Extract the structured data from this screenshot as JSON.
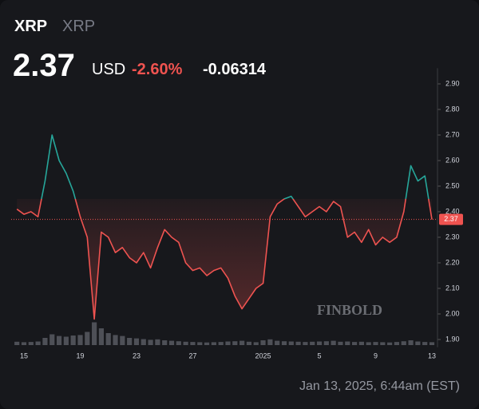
{
  "header": {
    "symbol": "XRP",
    "name": "XRP",
    "price": "2.37",
    "currency": "USD",
    "change_percent": "-2.60%",
    "change": "-0.06314"
  },
  "footer": {
    "timestamp": "Jan 13, 2025, 6:44am (EST)",
    "watermark": "FINBOLD"
  },
  "chart_data": {
    "type": "line",
    "categories": [
      null,
      "15",
      null,
      null,
      null,
      null,
      null,
      null,
      null,
      "19",
      null,
      null,
      null,
      null,
      null,
      null,
      null,
      "23",
      null,
      null,
      null,
      null,
      null,
      null,
      null,
      "27",
      null,
      null,
      null,
      null,
      null,
      null,
      null,
      null,
      null,
      "2025",
      null,
      null,
      null,
      null,
      null,
      null,
      null,
      "5",
      null,
      null,
      null,
      null,
      null,
      null,
      null,
      "9",
      null,
      null,
      null,
      null,
      null,
      null,
      null,
      "13"
    ],
    "values": [
      2.41,
      2.39,
      2.4,
      2.38,
      2.52,
      2.7,
      2.6,
      2.55,
      2.48,
      2.38,
      2.3,
      1.98,
      2.32,
      2.3,
      2.24,
      2.26,
      2.22,
      2.2,
      2.24,
      2.18,
      2.26,
      2.33,
      2.3,
      2.28,
      2.2,
      2.17,
      2.18,
      2.15,
      2.17,
      2.18,
      2.14,
      2.07,
      2.02,
      2.06,
      2.1,
      2.12,
      2.38,
      2.43,
      2.45,
      2.46,
      2.42,
      2.38,
      2.4,
      2.42,
      2.4,
      2.44,
      2.42,
      2.3,
      2.32,
      2.28,
      2.33,
      2.27,
      2.3,
      2.28,
      2.3,
      2.4,
      2.58,
      2.52,
      2.54,
      2.37
    ],
    "volumes": [
      14,
      12,
      13,
      15,
      30,
      45,
      38,
      35,
      40,
      42,
      55,
      95,
      70,
      50,
      42,
      38,
      30,
      28,
      25,
      22,
      24,
      20,
      18,
      16,
      14,
      13,
      12,
      11,
      12,
      13,
      15,
      16,
      18,
      14,
      12,
      20,
      24,
      18,
      16,
      15,
      14,
      13,
      14,
      15,
      16,
      18,
      14,
      15,
      13,
      14,
      12,
      13,
      12,
      11,
      13,
      16,
      20,
      15,
      13,
      12
    ],
    "volume_lim": [
      0,
      100
    ],
    "baseline": 2.45,
    "up_color": "#26a69a",
    "down_color": "#ef5350",
    "last_value": 2.37,
    "ylim": [
      1.87,
      2.93
    ],
    "yticks": [
      {
        "value": 1.9,
        "label": "1.90"
      },
      {
        "value": 2.0,
        "label": "2.00"
      },
      {
        "value": 2.1,
        "label": "2.10"
      },
      {
        "value": 2.2,
        "label": "2.20"
      },
      {
        "value": 2.3,
        "label": "2.30"
      },
      {
        "value": 2.4,
        "label": "2.40"
      },
      {
        "value": 2.5,
        "label": "2.50"
      },
      {
        "value": 2.6,
        "label": "2.60"
      },
      {
        "value": 2.7,
        "label": "2.70"
      },
      {
        "value": 2.8,
        "label": "2.80"
      },
      {
        "value": 2.9,
        "label": "2.90"
      }
    ]
  }
}
